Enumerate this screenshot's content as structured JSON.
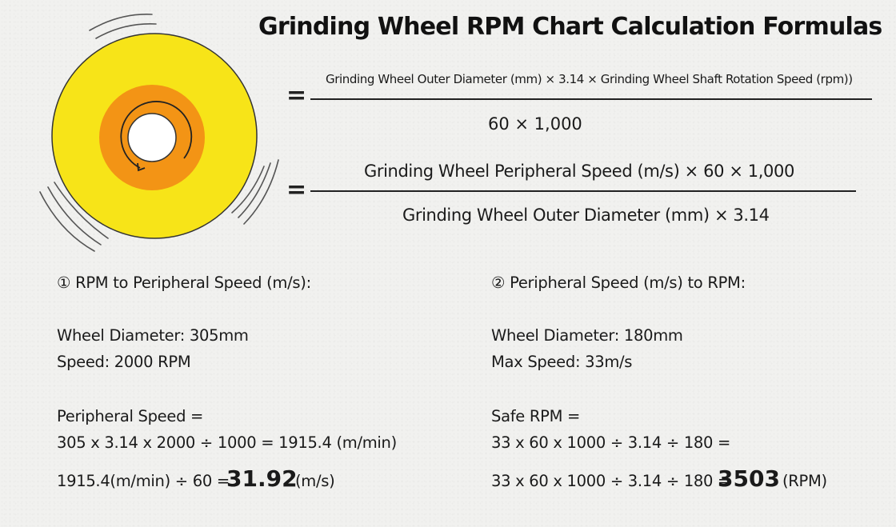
{
  "title": "Grinding Wheel RPM Chart Calculation Formulas",
  "formulas": {
    "equals": "=",
    "f1_numerator": "Grinding Wheel Outer Diameter (mm) × 3.14 × Grinding Wheel Shaft Rotation Speed (rpm))",
    "f1_denominator": "60 × 1,000",
    "f2_numerator": "Grinding Wheel Peripheral Speed (m/s) × 60 × 1,000",
    "f2_denominator": "Grinding Wheel Outer Diameter (mm) × 3.14"
  },
  "left_example": {
    "heading": "① RPM to Peripheral Speed (m/s):",
    "diameter": "Wheel Diameter: 305mm",
    "speed": "Speed: 2000 RPM",
    "label": "Peripheral Speed =",
    "step1": "305 x 3.14 x 2000 ÷ 1000 = 1915.4 (m/min)",
    "step2_prefix": "1915.4(m/min) ÷ 60 =",
    "result": "31.92",
    "unit": "(m/s)"
  },
  "right_example": {
    "heading": "② Peripheral Speed (m/s) to RPM:",
    "diameter": "Wheel Diameter: 180mm",
    "speed": "Max Speed: 33m/s",
    "label": "Safe RPM =",
    "step1": "33 x 60 x 1000 ÷ 3.14 ÷ 180 =",
    "step2_prefix": "33 x 60 x 1000 ÷ 3.14 ÷ 180 =",
    "result": "3503",
    "unit": "(RPM)"
  },
  "colors": {
    "wheel_outer": "#f7e418",
    "wheel_ring": "#f39415",
    "wheel_hub": "#ffffff",
    "text": "#1a1a1a"
  }
}
